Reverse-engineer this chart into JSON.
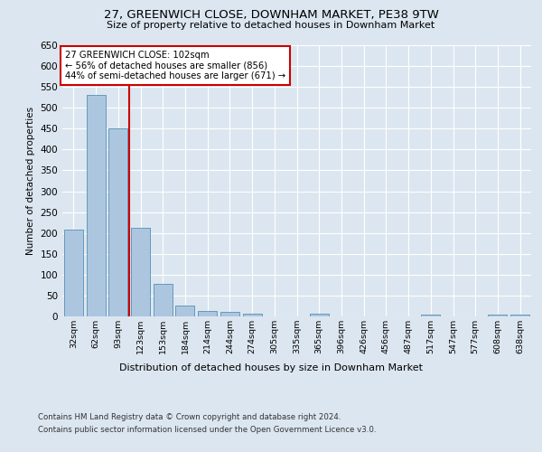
{
  "title1": "27, GREENWICH CLOSE, DOWNHAM MARKET, PE38 9TW",
  "title2": "Size of property relative to detached houses in Downham Market",
  "xlabel": "Distribution of detached houses by size in Downham Market",
  "ylabel": "Number of detached properties",
  "categories": [
    "32sqm",
    "62sqm",
    "93sqm",
    "123sqm",
    "153sqm",
    "184sqm",
    "214sqm",
    "244sqm",
    "274sqm",
    "305sqm",
    "335sqm",
    "365sqm",
    "396sqm",
    "426sqm",
    "456sqm",
    "487sqm",
    "517sqm",
    "547sqm",
    "577sqm",
    "608sqm",
    "638sqm"
  ],
  "values": [
    207,
    530,
    450,
    213,
    78,
    26,
    14,
    10,
    6,
    0,
    0,
    6,
    0,
    0,
    0,
    0,
    4,
    0,
    0,
    4,
    4
  ],
  "bar_color": "#adc6e0",
  "bar_edgecolor": "#6699bb",
  "vline_x": 2.5,
  "vline_color": "#cc0000",
  "annotation_title": "27 GREENWICH CLOSE: 102sqm",
  "annotation_line1": "← 56% of detached houses are smaller (856)",
  "annotation_line2": "44% of semi-detached houses are larger (671) →",
  "annotation_box_color": "#cc0000",
  "annotation_text_color": "#000000",
  "ylim": [
    0,
    650
  ],
  "yticks": [
    0,
    50,
    100,
    150,
    200,
    250,
    300,
    350,
    400,
    450,
    500,
    550,
    600,
    650
  ],
  "footer1": "Contains HM Land Registry data © Crown copyright and database right 2024.",
  "footer2": "Contains public sector information licensed under the Open Government Licence v3.0.",
  "bg_color": "#dce6f0",
  "plot_bg_color": "#dce6f0"
}
